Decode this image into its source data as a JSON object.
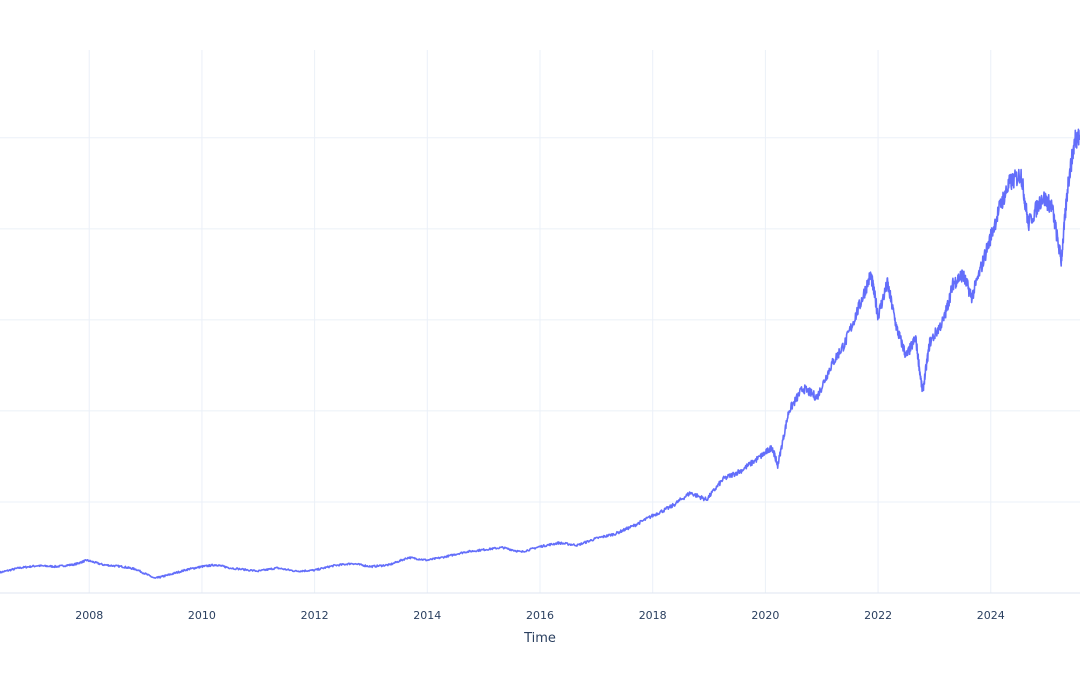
{
  "chart_data": {
    "type": "line",
    "xlabel": "Time",
    "ylabel": "",
    "x_ticks": [
      "2008",
      "2010",
      "2012",
      "2014",
      "2016",
      "2018",
      "2020",
      "2022",
      "2024"
    ],
    "xlim": [
      "2006-06-01",
      "2025-08-01"
    ],
    "ylim": [
      0,
      1250
    ],
    "y_gridlines": [
      200,
      400,
      600,
      800,
      1000
    ],
    "grid": true,
    "legend": "none",
    "series_color": "#636efa",
    "series": [
      {
        "x": [
          "2006-06-01",
          "2006-10-01",
          "2007-02-01",
          "2007-06-01",
          "2007-10-01",
          "2007-12-15",
          "2008-04-01",
          "2008-08-01",
          "2008-11-01",
          "2009-03-01",
          "2009-06-01",
          "2009-10-01",
          "2010-01-01",
          "2010-04-01",
          "2010-07-01",
          "2011-01-01",
          "2011-05-01",
          "2011-09-01",
          "2012-01-01",
          "2012-05-01",
          "2012-09-01",
          "2013-01-01",
          "2013-05-01",
          "2013-09-01",
          "2014-01-01",
          "2014-05-01",
          "2014-09-01",
          "2015-01-01",
          "2015-05-01",
          "2015-09-01",
          "2016-01-01",
          "2016-05-01",
          "2016-09-01",
          "2017-01-01",
          "2017-05-01",
          "2017-09-01",
          "2018-01-01",
          "2018-05-01",
          "2018-09-01",
          "2018-12-15",
          "2019-04-01",
          "2019-08-01",
          "2019-12-01",
          "2020-02-15",
          "2020-03-20",
          "2020-06-01",
          "2020-09-01",
          "2020-12-01",
          "2021-03-01",
          "2021-06-01",
          "2021-09-01",
          "2021-11-15",
          "2022-01-01",
          "2022-03-01",
          "2022-05-01",
          "2022-07-01",
          "2022-09-01",
          "2022-10-15",
          "2022-12-01",
          "2023-03-01",
          "2023-05-01",
          "2023-07-01",
          "2023-09-01",
          "2023-12-01",
          "2024-03-01",
          "2024-05-01",
          "2024-07-15",
          "2024-09-01",
          "2024-12-01",
          "2025-02-01",
          "2025-04-01",
          "2025-05-15",
          "2025-07-01",
          "2025-08-01"
        ],
        "values": [
          45,
          55,
          60,
          58,
          63,
          72,
          62,
          58,
          52,
          32,
          40,
          52,
          58,
          62,
          55,
          48,
          55,
          48,
          50,
          60,
          65,
          58,
          62,
          78,
          72,
          80,
          90,
          95,
          100,
          90,
          102,
          110,
          105,
          120,
          130,
          148,
          170,
          190,
          220,
          205,
          250,
          270,
          300,
          320,
          280,
          400,
          450,
          430,
          500,
          550,
          630,
          700,
          610,
          680,
          580,
          520,
          560,
          440,
          550,
          600,
          680,
          700,
          650,
          750,
          850,
          900,
          920,
          810,
          870,
          850,
          730,
          900,
          1000,
          1000
        ]
      }
    ]
  }
}
